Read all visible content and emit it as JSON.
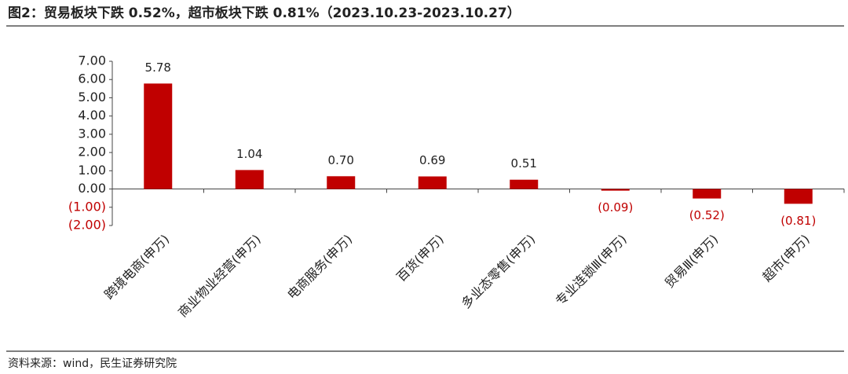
{
  "title": "图2：贸易板块下跌 0.52%，超市板块下跌 0.81%（2023.10.23-2023.10.27）",
  "source": "资料来源：wind，民生证券研究院",
  "chart_data": {
    "type": "bar",
    "categories": [
      "跨境电商(申万)",
      "商业物业经营(申万)",
      "电商服务(申万)",
      "百货(申万)",
      "多业态零售(申万)",
      "专业连锁Ⅲ(申万)",
      "贸易Ⅲ(申万)",
      "超市(申万)"
    ],
    "values": [
      5.78,
      1.04,
      0.7,
      0.69,
      0.51,
      -0.09,
      -0.52,
      -0.81
    ],
    "value_labels": [
      "5.78",
      "1.04",
      "0.70",
      "0.69",
      "0.51",
      "(0.09)",
      "(0.52)",
      "(0.81)"
    ],
    "color": "#c00000",
    "ylim": [
      -2,
      7
    ],
    "yticks": [
      {
        "value": -2,
        "label": "(2.00)"
      },
      {
        "value": -1,
        "label": "(1.00)"
      },
      {
        "value": 0,
        "label": "0.00"
      },
      {
        "value": 1,
        "label": "1.00"
      },
      {
        "value": 2,
        "label": "2.00"
      },
      {
        "value": 3,
        "label": "3.00"
      },
      {
        "value": 4,
        "label": "4.00"
      },
      {
        "value": 5,
        "label": "5.00"
      },
      {
        "value": 6,
        "label": "6.00"
      },
      {
        "value": 7,
        "label": "7.00"
      }
    ]
  }
}
